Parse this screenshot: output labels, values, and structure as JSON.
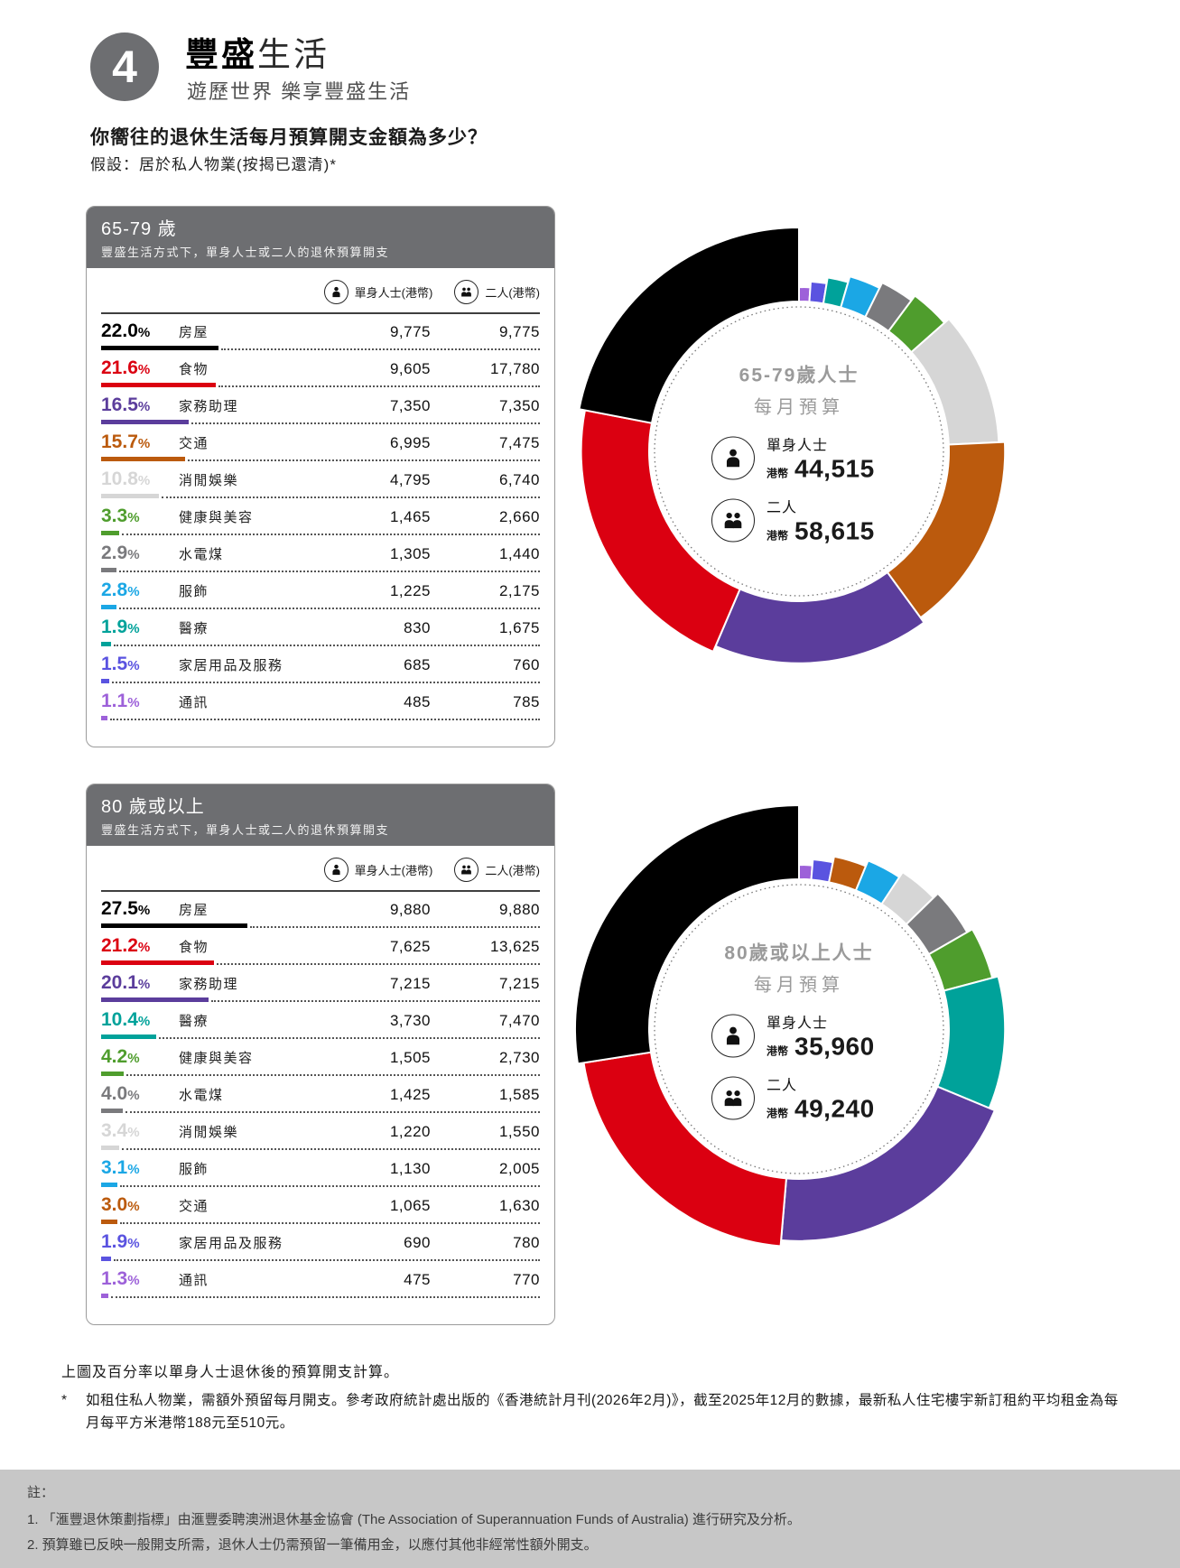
{
  "page": {
    "badge": "4",
    "title_bold": "豐盛",
    "title_light": "生活",
    "subtitle": "遊歷世界 樂享豐盛生活",
    "question": "你嚮往的退休生活每月預算開支金額為多少？",
    "assumption": "假設：居於私人物業(按揭已還清)*"
  },
  "legend": {
    "single": "單身人士(港幣)",
    "couple": "二人(港幣)"
  },
  "sections": [
    {
      "header_title": "65-79 歲",
      "header_subtitle": "豐盛生活方式下，單身人士或二人的退休預算開支",
      "rows": [
        {
          "pct": "22.0",
          "label": "房屋",
          "single": "9,775",
          "couple": "9,775",
          "color": "#000000"
        },
        {
          "pct": "21.6",
          "label": "食物",
          "single": "9,605",
          "couple": "17,780",
          "color": "#db0011"
        },
        {
          "pct": "16.5",
          "label": "家務助理",
          "single": "7,350",
          "couple": "7,350",
          "color": "#5b3d9c"
        },
        {
          "pct": "15.7",
          "label": "交通",
          "single": "6,995",
          "couple": "7,475",
          "color": "#bb5a0d"
        },
        {
          "pct": "10.8",
          "label": "消閒娛樂",
          "single": "4,795",
          "couple": "6,740",
          "color": "#d6d6d6"
        },
        {
          "pct": "3.3",
          "label": "健康與美容",
          "single": "1,465",
          "couple": "2,660",
          "color": "#4f9d2d"
        },
        {
          "pct": "2.9",
          "label": "水電煤",
          "single": "1,305",
          "couple": "1,440",
          "color": "#7a7a7d"
        },
        {
          "pct": "2.8",
          "label": "服飾",
          "single": "1,225",
          "couple": "2,175",
          "color": "#1ba7e5"
        },
        {
          "pct": "1.9",
          "label": "醫療",
          "single": "830",
          "couple": "1,675",
          "color": "#00a29a"
        },
        {
          "pct": "1.5",
          "label": "家居用品及服務",
          "single": "685",
          "couple": "760",
          "color": "#5a53e0"
        },
        {
          "pct": "1.1",
          "label": "通訊",
          "single": "485",
          "couple": "785",
          "color": "#9d61d9"
        }
      ],
      "donut": {
        "center_title_1": "65-79歲人士",
        "center_title_2": "每月預算",
        "single_label": "單身人士",
        "couple_label": "二人",
        "currency": "港幣",
        "single_value": "44,515",
        "couple_value": "58,615"
      }
    },
    {
      "header_title": "80 歲或以上",
      "header_subtitle": "豐盛生活方式下，單身人士或二人的退休預算開支",
      "rows": [
        {
          "pct": "27.5",
          "label": "房屋",
          "single": "9,880",
          "couple": "9,880",
          "color": "#000000"
        },
        {
          "pct": "21.2",
          "label": "食物",
          "single": "7,625",
          "couple": "13,625",
          "color": "#db0011"
        },
        {
          "pct": "20.1",
          "label": "家務助理",
          "single": "7,215",
          "couple": "7,215",
          "color": "#5b3d9c"
        },
        {
          "pct": "10.4",
          "label": "醫療",
          "single": "3,730",
          "couple": "7,470",
          "color": "#00a29a"
        },
        {
          "pct": "4.2",
          "label": "健康與美容",
          "single": "1,505",
          "couple": "2,730",
          "color": "#4f9d2d"
        },
        {
          "pct": "4.0",
          "label": "水電煤",
          "single": "1,425",
          "couple": "1,585",
          "color": "#7a7a7d"
        },
        {
          "pct": "3.4",
          "label": "消閒娛樂",
          "single": "1,220",
          "couple": "1,550",
          "color": "#d6d6d6"
        },
        {
          "pct": "3.1",
          "label": "服飾",
          "single": "1,130",
          "couple": "2,005",
          "color": "#1ba7e5"
        },
        {
          "pct": "3.0",
          "label": "交通",
          "single": "1,065",
          "couple": "1,630",
          "color": "#bb5a0d"
        },
        {
          "pct": "1.9",
          "label": "家居用品及服務",
          "single": "690",
          "couple": "780",
          "color": "#5a53e0"
        },
        {
          "pct": "1.3",
          "label": "通訊",
          "single": "475",
          "couple": "770",
          "color": "#9d61d9"
        }
      ],
      "donut": {
        "center_title_1": "80歲或以上人士",
        "center_title_2": "每月預算",
        "single_label": "單身人士",
        "couple_label": "二人",
        "currency": "港幣",
        "single_value": "35,960",
        "couple_value": "49,240"
      }
    }
  ],
  "chart_data": [
    {
      "type": "pie",
      "donut": true,
      "title": "65-79歲人士 每月預算",
      "categories": [
        "房屋",
        "食物",
        "家務助理",
        "交通",
        "消閒娛樂",
        "健康與美容",
        "水電煤",
        "服飾",
        "醫療",
        "家居用品及服務",
        "通訊"
      ],
      "values": [
        22.0,
        21.6,
        16.5,
        15.7,
        10.8,
        3.3,
        2.9,
        2.8,
        1.9,
        1.5,
        1.1
      ],
      "colors": [
        "#000000",
        "#db0011",
        "#5b3d9c",
        "#bb5a0d",
        "#d6d6d6",
        "#4f9d2d",
        "#7a7a7d",
        "#1ba7e5",
        "#00a29a",
        "#5a53e0",
        "#9d61d9"
      ],
      "single_values_hkd": [
        9775,
        9605,
        7350,
        6995,
        4795,
        1465,
        1305,
        1225,
        830,
        685,
        485
      ],
      "couple_values_hkd": [
        9775,
        17780,
        7350,
        7475,
        6740,
        2660,
        1440,
        2175,
        1675,
        760,
        785
      ],
      "center_single_total": "44,515",
      "center_couple_total": "58,615",
      "currency": "港幣",
      "legend_position": "none"
    },
    {
      "type": "pie",
      "donut": true,
      "title": "80歲或以上人士 每月預算",
      "categories": [
        "房屋",
        "食物",
        "家務助理",
        "醫療",
        "健康與美容",
        "水電煤",
        "消閒娛樂",
        "服飾",
        "交通",
        "家居用品及服務",
        "通訊"
      ],
      "values": [
        27.5,
        21.2,
        20.1,
        10.4,
        4.2,
        4.0,
        3.4,
        3.1,
        3.0,
        1.9,
        1.3
      ],
      "colors": [
        "#000000",
        "#db0011",
        "#5b3d9c",
        "#00a29a",
        "#4f9d2d",
        "#7a7a7d",
        "#d6d6d6",
        "#1ba7e5",
        "#bb5a0d",
        "#5a53e0",
        "#9d61d9"
      ],
      "single_values_hkd": [
        9880,
        7625,
        7215,
        3730,
        1505,
        1425,
        1220,
        1130,
        1065,
        690,
        475
      ],
      "couple_values_hkd": [
        9880,
        13625,
        7215,
        7470,
        2730,
        1585,
        1550,
        2005,
        1630,
        780,
        770
      ],
      "center_single_total": "35,960",
      "center_couple_total": "49,240",
      "currency": "港幣",
      "legend_position": "none"
    }
  ],
  "footnotes": {
    "line1": "上圖及百分率以單身人士退休後的預算開支計算。",
    "star": "*",
    "star_text": "如租住私人物業，需額外預留每月開支。參考政府統計處出版的《香港統計月刊(2026年2月)》，截至2025年12月的數據，最新私人住宅樓宇新訂租約平均租金為每月每平方米港幣188元至510元。"
  },
  "note_box": {
    "heading": "註：",
    "items": [
      "1. 「滙豐退休策劃指標」由滙豐委聘澳洲退休基金協會 (The Association of Superannuation Funds of Australia) 進行研究及分析。",
      "2. 預算雖已反映一般開支所需，退休人士仍需預留一筆備用金，以應付其他非經常性額外開支。"
    ]
  }
}
